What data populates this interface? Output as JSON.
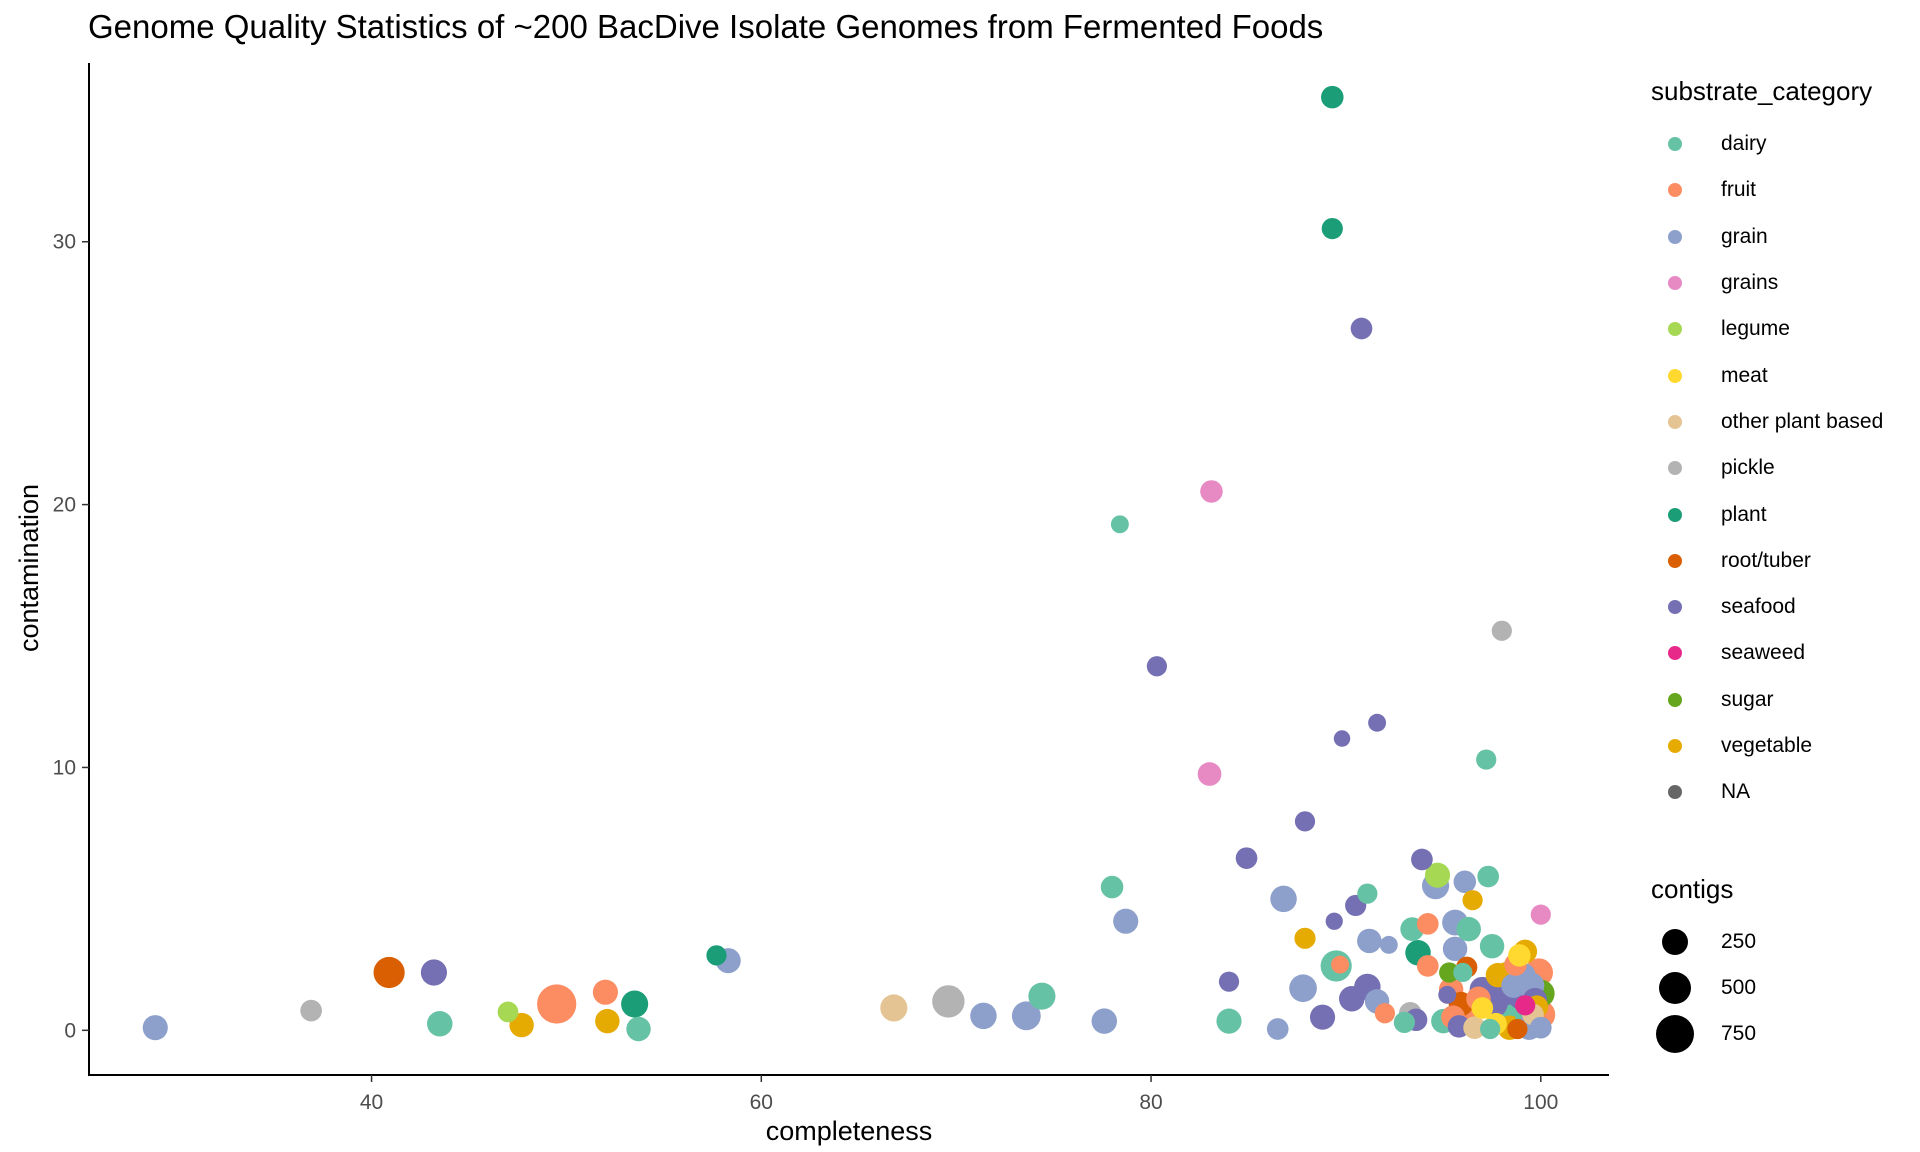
{
  "title": "Genome Quality Statistics of ~200 BacDive Isolate Genomes from Fermented Foods",
  "chart_data": {
    "type": "scatter",
    "title": "Genome Quality Statistics of ~200 BacDive Isolate Genomes from Fermented Foods",
    "xlabel": "completeness",
    "ylabel": "contamination",
    "xlim": [
      25.5,
      103.5
    ],
    "ylim": [
      -1.7,
      36.8
    ],
    "x_ticks": [
      40,
      60,
      80,
      100
    ],
    "y_ticks": [
      0,
      10,
      20,
      30
    ],
    "grid": false,
    "legend_color": {
      "title": "substrate_category",
      "placement": "right",
      "entries": [
        {
          "label": "dairy",
          "color": "#66C2A5"
        },
        {
          "label": "fruit",
          "color": "#FC8D62"
        },
        {
          "label": "grain",
          "color": "#8DA0CB"
        },
        {
          "label": "grains",
          "color": "#E78AC3"
        },
        {
          "label": "legume",
          "color": "#A6D854"
        },
        {
          "label": "meat",
          "color": "#FFD92F"
        },
        {
          "label": "other plant based",
          "color": "#E5C494"
        },
        {
          "label": "pickle",
          "color": "#B3B3B3"
        },
        {
          "label": "plant",
          "color": "#1B9E77"
        },
        {
          "label": "root/tuber",
          "color": "#D95F02"
        },
        {
          "label": "seafood",
          "color": "#7570B3"
        },
        {
          "label": "seaweed",
          "color": "#E7298A"
        },
        {
          "label": "sugar",
          "color": "#66A61E"
        },
        {
          "label": "vegetable",
          "color": "#E6AB02"
        },
        {
          "label": "NA",
          "color": "#666666"
        }
      ]
    },
    "legend_size": {
      "title": "contigs",
      "placement": "right",
      "entries": [
        250,
        500,
        750
      ]
    },
    "points": [
      {
        "x": 28.9,
        "y": 0.1,
        "contigs": 220,
        "category": "grain"
      },
      {
        "x": 36.9,
        "y": 0.75,
        "contigs": 130,
        "category": "pickle"
      },
      {
        "x": 40.9,
        "y": 2.2,
        "contigs": 430,
        "category": "root/tuber"
      },
      {
        "x": 43.2,
        "y": 2.2,
        "contigs": 250,
        "category": "seafood"
      },
      {
        "x": 43.5,
        "y": 0.25,
        "contigs": 230,
        "category": "dairy"
      },
      {
        "x": 47.0,
        "y": 0.7,
        "contigs": 110,
        "category": "legume"
      },
      {
        "x": 47.7,
        "y": 0.2,
        "contigs": 200,
        "category": "vegetable"
      },
      {
        "x": 49.5,
        "y": 1.0,
        "contigs": 820,
        "category": "fruit"
      },
      {
        "x": 52.0,
        "y": 1.45,
        "contigs": 220,
        "category": "fruit"
      },
      {
        "x": 52.1,
        "y": 0.35,
        "contigs": 200,
        "category": "vegetable"
      },
      {
        "x": 53.5,
        "y": 1.0,
        "contigs": 280,
        "category": "plant"
      },
      {
        "x": 53.7,
        "y": 0.05,
        "contigs": 200,
        "category": "dairy"
      },
      {
        "x": 57.7,
        "y": 2.85,
        "contigs": 100,
        "category": "plant"
      },
      {
        "x": 58.3,
        "y": 2.65,
        "contigs": 220,
        "category": "grain"
      },
      {
        "x": 66.8,
        "y": 0.85,
        "contigs": 280,
        "category": "other plant based"
      },
      {
        "x": 69.6,
        "y": 1.1,
        "contigs": 480,
        "category": "pickle"
      },
      {
        "x": 71.4,
        "y": 0.55,
        "contigs": 260,
        "category": "grain"
      },
      {
        "x": 73.6,
        "y": 0.55,
        "contigs": 340,
        "category": "grain"
      },
      {
        "x": 74.4,
        "y": 1.3,
        "contigs": 280,
        "category": "dairy"
      },
      {
        "x": 77.6,
        "y": 0.35,
        "contigs": 230,
        "category": "grain"
      },
      {
        "x": 78.0,
        "y": 5.45,
        "contigs": 150,
        "category": "dairy"
      },
      {
        "x": 78.4,
        "y": 19.25,
        "contigs": 60,
        "category": "dairy"
      },
      {
        "x": 78.7,
        "y": 4.15,
        "contigs": 220,
        "category": "grain"
      },
      {
        "x": 80.3,
        "y": 13.85,
        "contigs": 100,
        "category": "seafood"
      },
      {
        "x": 83.0,
        "y": 9.75,
        "contigs": 180,
        "category": "grains"
      },
      {
        "x": 83.1,
        "y": 20.5,
        "contigs": 150,
        "category": "grains"
      },
      {
        "x": 84.0,
        "y": 0.35,
        "contigs": 220,
        "category": "dairy"
      },
      {
        "x": 84.0,
        "y": 1.85,
        "contigs": 100,
        "category": "seafood"
      },
      {
        "x": 84.9,
        "y": 6.55,
        "contigs": 130,
        "category": "seafood"
      },
      {
        "x": 86.5,
        "y": 0.05,
        "contigs": 130,
        "category": "grain"
      },
      {
        "x": 86.8,
        "y": 5.0,
        "contigs": 260,
        "category": "grain"
      },
      {
        "x": 87.8,
        "y": 1.6,
        "contigs": 300,
        "category": "grain"
      },
      {
        "x": 87.9,
        "y": 3.5,
        "contigs": 120,
        "category": "vegetable"
      },
      {
        "x": 87.9,
        "y": 7.95,
        "contigs": 100,
        "category": "seafood"
      },
      {
        "x": 88.8,
        "y": 0.5,
        "contigs": 220,
        "category": "seafood"
      },
      {
        "x": 89.3,
        "y": 35.5,
        "contigs": 150,
        "category": "plant"
      },
      {
        "x": 89.3,
        "y": 30.5,
        "contigs": 120,
        "category": "plant"
      },
      {
        "x": 89.4,
        "y": 4.15,
        "contigs": 50,
        "category": "seafood"
      },
      {
        "x": 89.5,
        "y": 2.45,
        "contigs": 430,
        "category": "dairy"
      },
      {
        "x": 89.7,
        "y": 2.5,
        "contigs": 60,
        "category": "fruit"
      },
      {
        "x": 89.8,
        "y": 11.1,
        "contigs": 40,
        "category": "seafood"
      },
      {
        "x": 90.3,
        "y": 1.2,
        "contigs": 230,
        "category": "seafood"
      },
      {
        "x": 90.5,
        "y": 4.75,
        "contigs": 120,
        "category": "seafood"
      },
      {
        "x": 90.8,
        "y": 26.7,
        "contigs": 130,
        "category": "seafood"
      },
      {
        "x": 91.1,
        "y": 5.2,
        "contigs": 100,
        "category": "dairy"
      },
      {
        "x": 91.1,
        "y": 1.65,
        "contigs": 260,
        "category": "seafood"
      },
      {
        "x": 91.2,
        "y": 3.4,
        "contigs": 200,
        "category": "grain"
      },
      {
        "x": 91.6,
        "y": 11.7,
        "contigs": 60,
        "category": "seafood"
      },
      {
        "x": 91.6,
        "y": 1.1,
        "contigs": 200,
        "category": "grain"
      },
      {
        "x": 92.0,
        "y": 0.65,
        "contigs": 100,
        "category": "fruit"
      },
      {
        "x": 92.2,
        "y": 3.25,
        "contigs": 60,
        "category": "grain"
      },
      {
        "x": 93.0,
        "y": 0.3,
        "contigs": 120,
        "category": "dairy"
      },
      {
        "x": 93.3,
        "y": 0.65,
        "contigs": 150,
        "category": "pickle"
      },
      {
        "x": 93.4,
        "y": 3.85,
        "contigs": 180,
        "category": "dairy"
      },
      {
        "x": 93.6,
        "y": 0.4,
        "contigs": 150,
        "category": "seafood"
      },
      {
        "x": 93.7,
        "y": 2.95,
        "contigs": 230,
        "category": "plant"
      },
      {
        "x": 93.9,
        "y": 6.5,
        "contigs": 130,
        "category": "seafood"
      },
      {
        "x": 94.2,
        "y": 2.45,
        "contigs": 130,
        "category": "fruit"
      },
      {
        "x": 94.2,
        "y": 4.05,
        "contigs": 130,
        "category": "fruit"
      },
      {
        "x": 94.6,
        "y": 5.5,
        "contigs": 280,
        "category": "grain"
      },
      {
        "x": 94.7,
        "y": 5.9,
        "contigs": 220,
        "category": "legume"
      },
      {
        "x": 95.0,
        "y": 0.35,
        "contigs": 200,
        "category": "dairy"
      },
      {
        "x": 95.2,
        "y": 1.35,
        "contigs": 60,
        "category": "seafood"
      },
      {
        "x": 95.3,
        "y": 2.2,
        "contigs": 100,
        "category": "sugar"
      },
      {
        "x": 95.4,
        "y": 1.55,
        "contigs": 200,
        "category": "fruit"
      },
      {
        "x": 95.5,
        "y": 0.5,
        "contigs": 180,
        "category": "fruit"
      },
      {
        "x": 95.6,
        "y": 3.1,
        "contigs": 200,
        "category": "grain"
      },
      {
        "x": 95.6,
        "y": 4.1,
        "contigs": 240,
        "category": "grain"
      },
      {
        "x": 95.8,
        "y": 0.15,
        "contigs": 150,
        "category": "seafood"
      },
      {
        "x": 95.9,
        "y": 1.0,
        "contigs": 200,
        "category": "root/tuber"
      },
      {
        "x": 96.0,
        "y": 2.2,
        "contigs": 80,
        "category": "dairy"
      },
      {
        "x": 96.1,
        "y": 5.65,
        "contigs": 150,
        "category": "grain"
      },
      {
        "x": 96.2,
        "y": 2.4,
        "contigs": 120,
        "category": "root/tuber"
      },
      {
        "x": 96.3,
        "y": 3.85,
        "contigs": 200,
        "category": "dairy"
      },
      {
        "x": 96.4,
        "y": 0.8,
        "contigs": 280,
        "category": "fruit"
      },
      {
        "x": 96.5,
        "y": 4.95,
        "contigs": 100,
        "category": "vegetable"
      },
      {
        "x": 96.6,
        "y": 0.1,
        "contigs": 150,
        "category": "other plant based"
      },
      {
        "x": 96.8,
        "y": 1.2,
        "contigs": 200,
        "category": "fruit"
      },
      {
        "x": 97.0,
        "y": 1.55,
        "contigs": 230,
        "category": "seafood"
      },
      {
        "x": 97.0,
        "y": 0.85,
        "contigs": 130,
        "category": "meat"
      },
      {
        "x": 97.2,
        "y": 10.3,
        "contigs": 100,
        "category": "dairy"
      },
      {
        "x": 97.3,
        "y": 5.85,
        "contigs": 130,
        "category": "dairy"
      },
      {
        "x": 97.4,
        "y": 0.05,
        "contigs": 100,
        "category": "dairy"
      },
      {
        "x": 97.5,
        "y": 3.2,
        "contigs": 200,
        "category": "dairy"
      },
      {
        "x": 97.6,
        "y": 1.0,
        "contigs": 280,
        "category": "seafood"
      },
      {
        "x": 97.7,
        "y": 0.25,
        "contigs": 130,
        "category": "meat"
      },
      {
        "x": 97.8,
        "y": 2.1,
        "contigs": 200,
        "category": "vegetable"
      },
      {
        "x": 97.9,
        "y": 1.3,
        "contigs": 340,
        "category": "dairy"
      },
      {
        "x": 98.0,
        "y": 15.2,
        "contigs": 100,
        "category": "pickle"
      },
      {
        "x": 98.1,
        "y": 0.6,
        "contigs": 300,
        "category": "seafood"
      },
      {
        "x": 98.2,
        "y": 1.45,
        "contigs": 260,
        "category": "seafood"
      },
      {
        "x": 98.3,
        "y": 2.15,
        "contigs": 200,
        "category": "vegetable"
      },
      {
        "x": 98.4,
        "y": 0.1,
        "contigs": 200,
        "category": "vegetable"
      },
      {
        "x": 98.5,
        "y": 0.85,
        "contigs": 300,
        "category": "dairy"
      },
      {
        "x": 98.6,
        "y": 1.7,
        "contigs": 200,
        "category": "grain"
      },
      {
        "x": 98.7,
        "y": 2.5,
        "contigs": 150,
        "category": "fruit"
      },
      {
        "x": 98.8,
        "y": 0.05,
        "contigs": 100,
        "category": "root/tuber"
      },
      {
        "x": 98.9,
        "y": 2.85,
        "contigs": 150,
        "category": "meat"
      },
      {
        "x": 99.0,
        "y": 1.3,
        "contigs": 280,
        "category": "seafood"
      },
      {
        "x": 99.1,
        "y": 2.1,
        "contigs": 200,
        "category": "grain"
      },
      {
        "x": 99.2,
        "y": 0.95,
        "contigs": 100,
        "category": "seaweed"
      },
      {
        "x": 99.2,
        "y": 3.0,
        "contigs": 180,
        "category": "vegetable"
      },
      {
        "x": 99.3,
        "y": 0.35,
        "contigs": 200,
        "category": "dairy"
      },
      {
        "x": 99.4,
        "y": 0.1,
        "contigs": 200,
        "category": "grain"
      },
      {
        "x": 99.5,
        "y": 1.7,
        "contigs": 260,
        "category": "grain"
      },
      {
        "x": 99.6,
        "y": 0.6,
        "contigs": 130,
        "category": "other plant based"
      },
      {
        "x": 99.7,
        "y": 1.15,
        "contigs": 200,
        "category": "seafood"
      },
      {
        "x": 99.8,
        "y": 0.9,
        "contigs": 150,
        "category": "vegetable"
      },
      {
        "x": 99.9,
        "y": 2.2,
        "contigs": 320,
        "category": "fruit"
      },
      {
        "x": 100.0,
        "y": 4.4,
        "contigs": 100,
        "category": "grains"
      },
      {
        "x": 100.0,
        "y": 1.4,
        "contigs": 300,
        "category": "sugar"
      },
      {
        "x": 100.0,
        "y": 0.6,
        "contigs": 340,
        "category": "fruit"
      },
      {
        "x": 100.0,
        "y": 0.1,
        "contigs": 130,
        "category": "grain"
      }
    ]
  }
}
